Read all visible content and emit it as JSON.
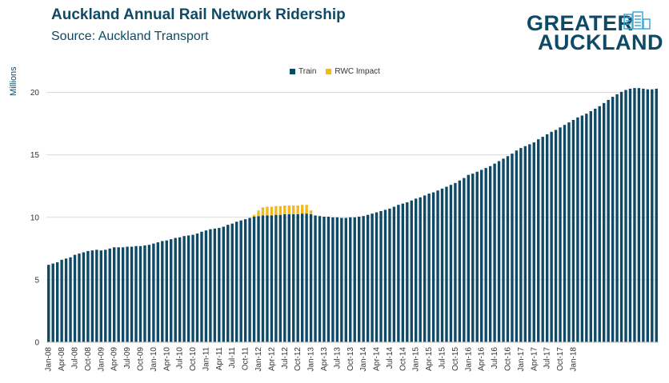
{
  "header": {
    "title": "Auckland Annual Rail Network Ridership",
    "subtitle": "Source: Auckland Transport"
  },
  "logo": {
    "line1": "GREATER",
    "line2": "AUCKLAND"
  },
  "colors": {
    "train": "#0e4a66",
    "rwc": "#f2b91f",
    "grid": "#d9d9d9",
    "text": "#0e4a66"
  },
  "chart_data": {
    "type": "bar",
    "stacked": true,
    "ylabel": "Millions",
    "ylim": [
      0,
      21
    ],
    "yticks": [
      0,
      5,
      10,
      15,
      20
    ],
    "grid": true,
    "legend_position": "top-center",
    "tick_labels": [
      "Jan-08",
      "Apr-08",
      "Jul-08",
      "Oct-08",
      "Jan-09",
      "Apr-09",
      "Jul-09",
      "Oct-09",
      "Jan-10",
      "Apr-10",
      "Jul-10",
      "Oct-10",
      "Jan-11",
      "Apr-11",
      "Jul-11",
      "Oct-11",
      "Jan-12",
      "Apr-12",
      "Jul-12",
      "Oct-12",
      "Jan-13",
      "Apr-13",
      "Jul-13",
      "Oct-13",
      "Jan-14",
      "Apr-14",
      "Jul-14",
      "Oct-14",
      "Jan-15",
      "Apr-15",
      "Jul-15",
      "Oct-15",
      "Jan-16",
      "Apr-16",
      "Jul-16",
      "Oct-16",
      "Jan-17",
      "Apr-17",
      "Jul-17",
      "Oct-17",
      "Jan-18"
    ],
    "series": [
      {
        "name": "Train",
        "values": [
          6.2,
          6.3,
          6.4,
          6.6,
          6.7,
          6.8,
          7.0,
          7.1,
          7.2,
          7.3,
          7.35,
          7.4,
          7.35,
          7.4,
          7.5,
          7.6,
          7.6,
          7.6,
          7.65,
          7.65,
          7.7,
          7.7,
          7.75,
          7.8,
          7.9,
          8.0,
          8.1,
          8.15,
          8.25,
          8.35,
          8.4,
          8.5,
          8.55,
          8.6,
          8.7,
          8.85,
          8.95,
          9.05,
          9.1,
          9.15,
          9.25,
          9.4,
          9.5,
          9.65,
          9.75,
          9.85,
          9.95,
          10.05,
          10.1,
          10.15,
          10.15,
          10.15,
          10.2,
          10.2,
          10.25,
          10.25,
          10.25,
          10.25,
          10.3,
          10.3,
          10.25,
          10.15,
          10.1,
          10.05,
          10.05,
          10.0,
          10.0,
          9.95,
          9.95,
          10.0,
          10.0,
          10.05,
          10.1,
          10.2,
          10.3,
          10.4,
          10.5,
          10.6,
          10.7,
          10.85,
          11.0,
          11.1,
          11.2,
          11.35,
          11.5,
          11.6,
          11.75,
          11.9,
          12.0,
          12.15,
          12.3,
          12.45,
          12.6,
          12.75,
          12.95,
          13.15,
          13.4,
          13.5,
          13.65,
          13.8,
          13.95,
          14.1,
          14.3,
          14.5,
          14.7,
          14.9,
          15.1,
          15.35,
          15.55,
          15.7,
          15.85,
          16.0,
          16.25,
          16.45,
          16.65,
          16.85,
          17.0,
          17.2,
          17.4,
          17.6,
          17.8,
          18.0,
          18.15,
          18.3,
          18.5,
          18.7,
          18.9,
          19.15,
          19.4,
          19.65,
          19.85,
          20.05,
          20.2,
          20.3,
          20.35,
          20.35,
          20.3,
          20.25,
          20.25,
          20.3
        ]
      },
      {
        "name": "RWC Impact",
        "values": [
          0,
          0,
          0,
          0,
          0,
          0,
          0,
          0,
          0,
          0,
          0,
          0,
          0,
          0,
          0,
          0,
          0,
          0,
          0,
          0,
          0,
          0,
          0,
          0,
          0,
          0,
          0,
          0,
          0,
          0,
          0,
          0,
          0,
          0,
          0,
          0,
          0,
          0,
          0,
          0,
          0,
          0,
          0,
          0,
          0,
          0,
          0,
          0.15,
          0.45,
          0.65,
          0.7,
          0.7,
          0.7,
          0.7,
          0.7,
          0.7,
          0.7,
          0.7,
          0.7,
          0.7,
          0.3,
          0,
          0,
          0,
          0,
          0,
          0,
          0,
          0,
          0,
          0,
          0,
          0,
          0,
          0,
          0,
          0,
          0,
          0,
          0,
          0,
          0,
          0,
          0,
          0,
          0,
          0,
          0,
          0,
          0,
          0,
          0,
          0,
          0,
          0,
          0,
          0,
          0,
          0,
          0,
          0,
          0,
          0,
          0,
          0,
          0,
          0,
          0,
          0,
          0,
          0,
          0,
          0,
          0,
          0,
          0,
          0,
          0,
          0,
          0,
          0,
          0,
          0,
          0,
          0,
          0,
          0,
          0,
          0,
          0,
          0,
          0,
          0,
          0,
          0,
          0,
          0
        ]
      }
    ]
  }
}
